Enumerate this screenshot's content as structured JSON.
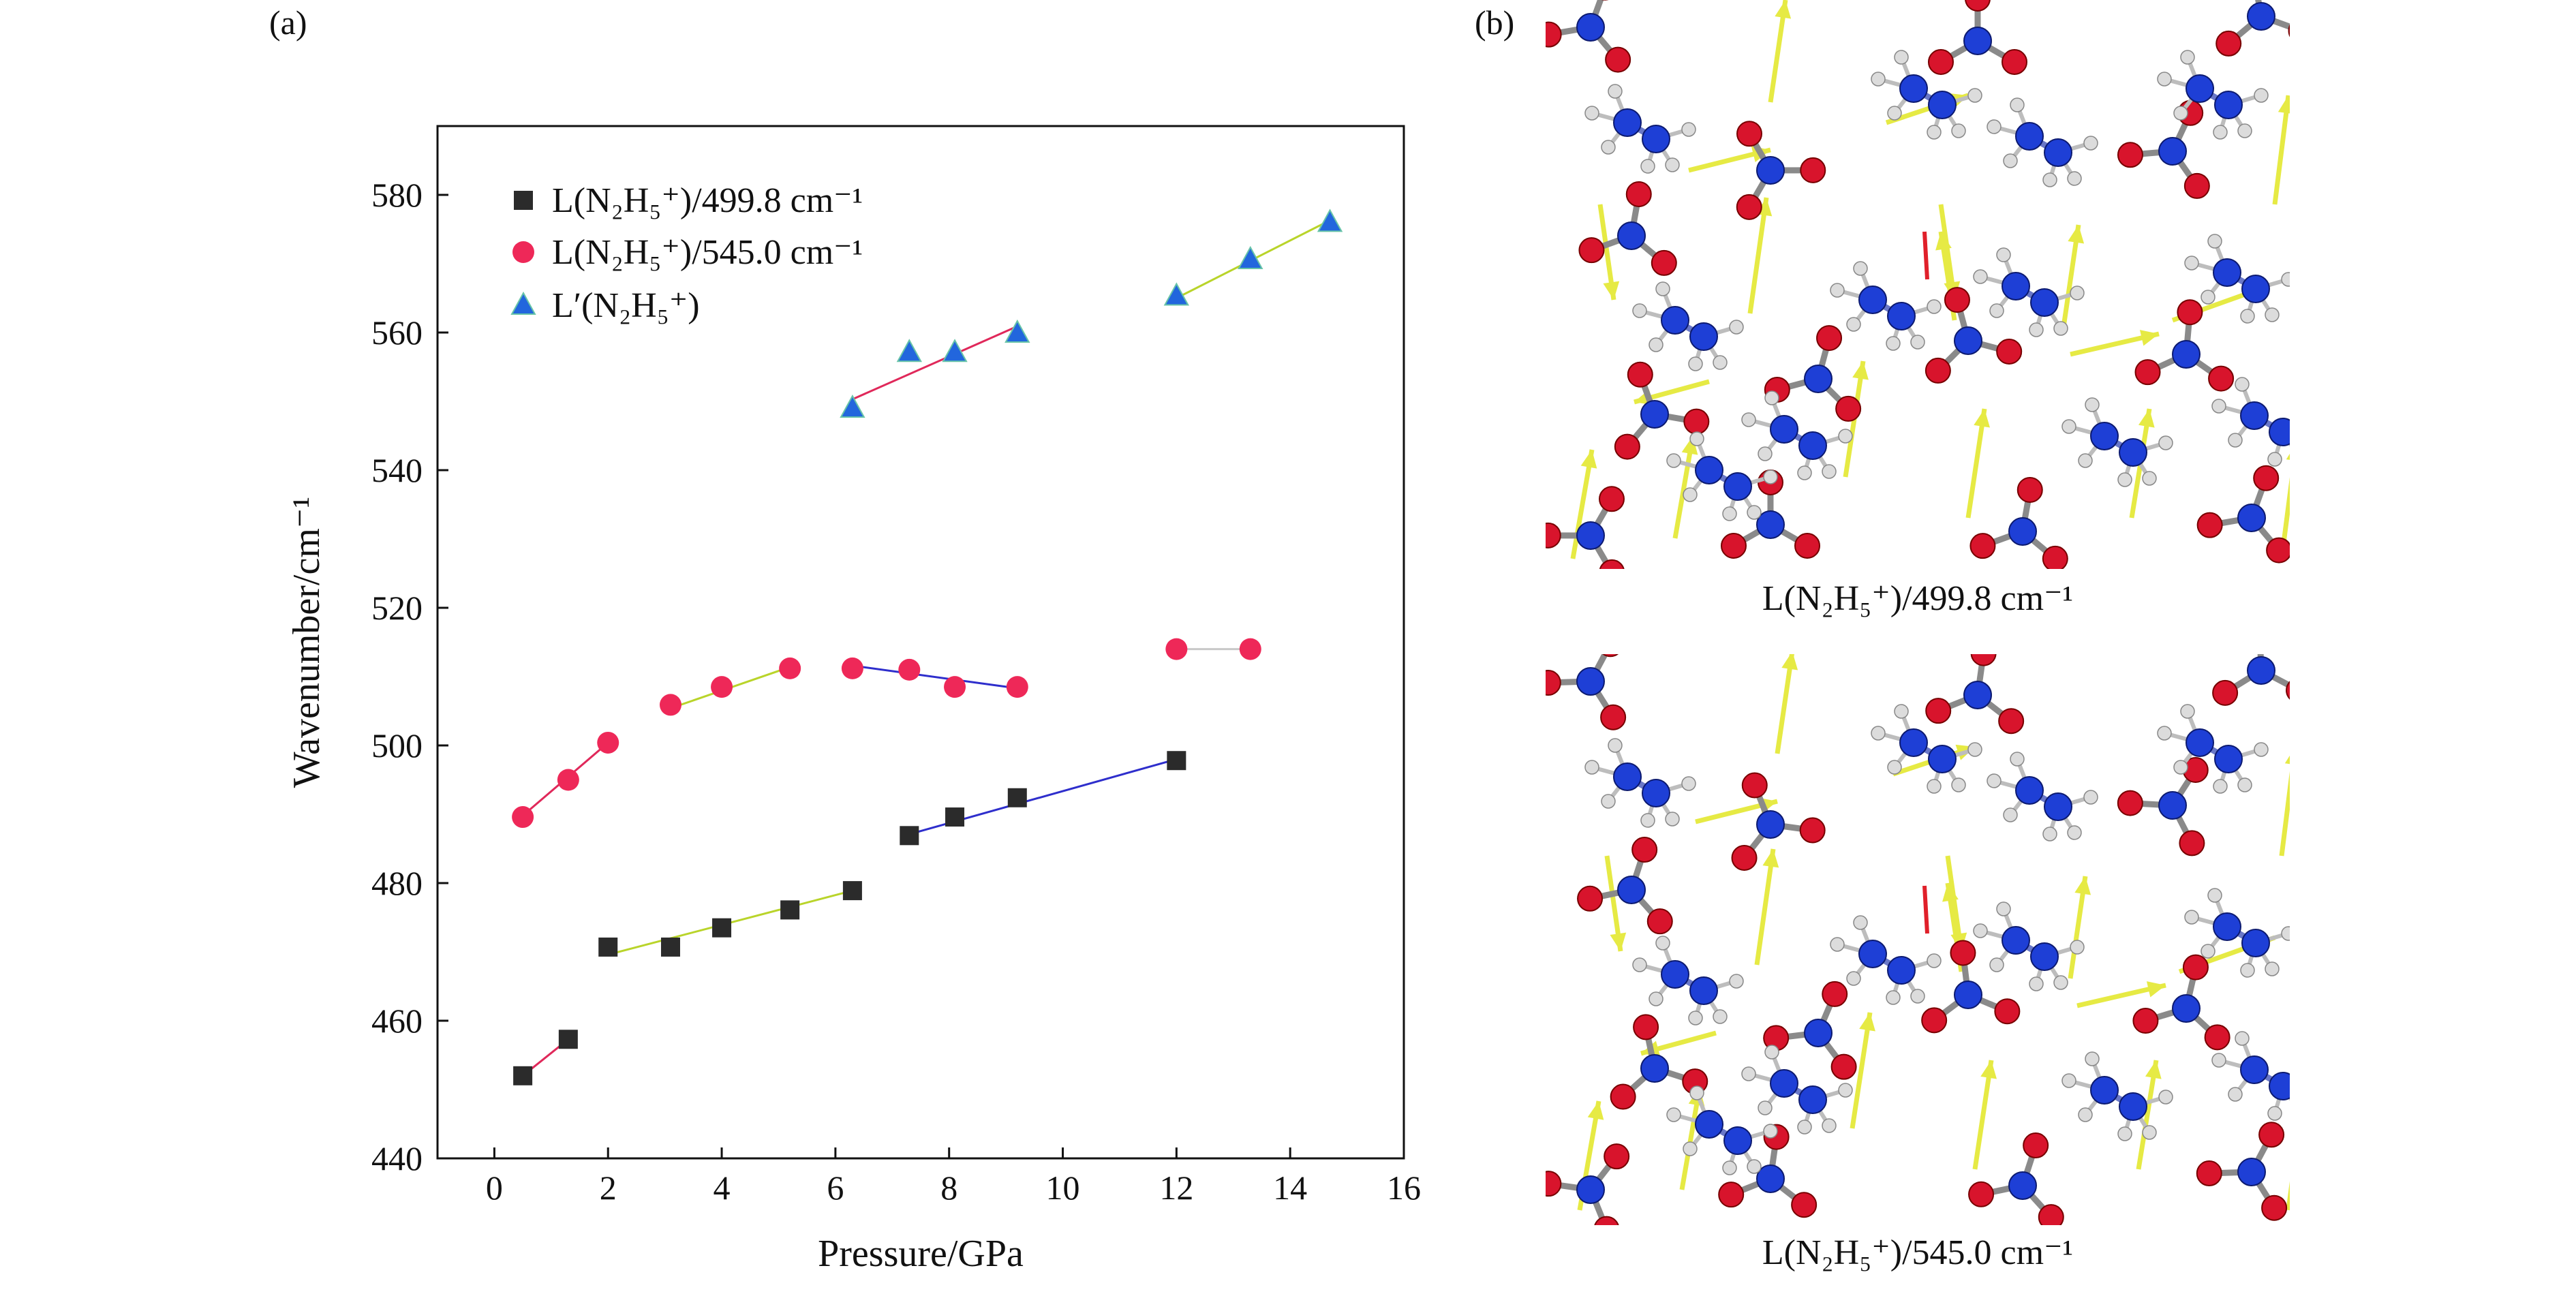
{
  "figure": {
    "panel_a_label": "(a)",
    "panel_b_label": "(b)",
    "panel_b_top_caption": "L(N₂H₅⁺)/499.8 cm⁻¹",
    "panel_b_bottom_caption": "L(N₂H₅⁺)/545.0 cm⁻¹"
  },
  "colors": {
    "series_black": "#2b2b2b",
    "series_red": "#ee2858",
    "series_blue": "#2266dd",
    "fit_yellow": "#b9d42a",
    "fit_blue": "#2e2ecc",
    "fit_red": "#e0285a",
    "fit_gray": "#c8c8c8",
    "atom_red": "#d8142c",
    "atom_blue": "#1e3fd6",
    "atom_white": "#dcdcdc",
    "arrow_yellow": "#e6ea44"
  },
  "chart_data": {
    "type": "scatter",
    "xlabel": "Pressure/GPa",
    "ylabel": "Wavenumber/cm⁻¹",
    "xlim": [
      -1,
      16
    ],
    "ylim": [
      440,
      590
    ],
    "xticks": [
      0,
      2,
      4,
      6,
      8,
      10,
      12,
      14,
      16
    ],
    "yticks": [
      440,
      460,
      480,
      500,
      520,
      540,
      560,
      580
    ],
    "grid": false,
    "legend_position": "top-left",
    "series": [
      {
        "name": "L(N₂H₅⁺)/499.8 cm⁻¹",
        "marker": "square",
        "color": "#2b2b2b",
        "x": [
          0.5,
          1.3,
          2.0,
          3.1,
          4.0,
          5.2,
          6.3,
          7.3,
          8.1,
          9.2,
          12.0
        ],
        "y": [
          452.0,
          457.3,
          470.7,
          470.7,
          473.5,
          476.1,
          478.9,
          486.9,
          489.6,
          492.4,
          497.8
        ]
      },
      {
        "name": "L(N₂H₅⁺)/545.0 cm⁻¹",
        "marker": "circle",
        "color": "#ee2858",
        "x": [
          0.5,
          1.3,
          2.0,
          3.1,
          4.0,
          5.2,
          6.3,
          7.3,
          8.1,
          9.2,
          12.0,
          13.3
        ],
        "y": [
          489.6,
          495.0,
          500.4,
          505.9,
          508.5,
          511.2,
          511.2,
          511.0,
          508.5,
          508.5,
          514.0,
          514.0
        ]
      },
      {
        "name": "L′(N₂H₅⁺)",
        "marker": "triangle",
        "color": "#2266dd",
        "x": [
          6.3,
          7.3,
          8.1,
          9.2,
          12.0,
          13.3,
          14.7
        ],
        "y": [
          549.0,
          557.1,
          557.1,
          559.9,
          565.3,
          570.6,
          576.0
        ]
      }
    ],
    "fit_lines": [
      {
        "from": [
          0.5,
          452.0
        ],
        "to": [
          1.3,
          457.3
        ],
        "color": "#e0285a"
      },
      {
        "from": [
          2.0,
          469.6
        ],
        "to": [
          6.3,
          478.9
        ],
        "color": "#b9d42a"
      },
      {
        "from": [
          7.3,
          487.1
        ],
        "to": [
          12.0,
          498.0
        ],
        "color": "#2e2ecc"
      },
      {
        "from": [
          0.5,
          489.8
        ],
        "to": [
          2.0,
          500.4
        ],
        "color": "#e0285a"
      },
      {
        "from": [
          3.1,
          505.4
        ],
        "to": [
          5.2,
          511.4
        ],
        "color": "#b9d42a"
      },
      {
        "from": [
          6.3,
          511.6
        ],
        "to": [
          9.2,
          508.3
        ],
        "color": "#2e2ecc"
      },
      {
        "from": [
          12.0,
          514.0
        ],
        "to": [
          13.3,
          514.0
        ],
        "color": "#c8c8c8"
      },
      {
        "from": [
          6.3,
          550.3
        ],
        "to": [
          9.2,
          560.9
        ],
        "color": "#e0285a"
      },
      {
        "from": [
          12.0,
          565.0
        ],
        "to": [
          14.7,
          576.3
        ],
        "color": "#b9d42a"
      }
    ]
  }
}
